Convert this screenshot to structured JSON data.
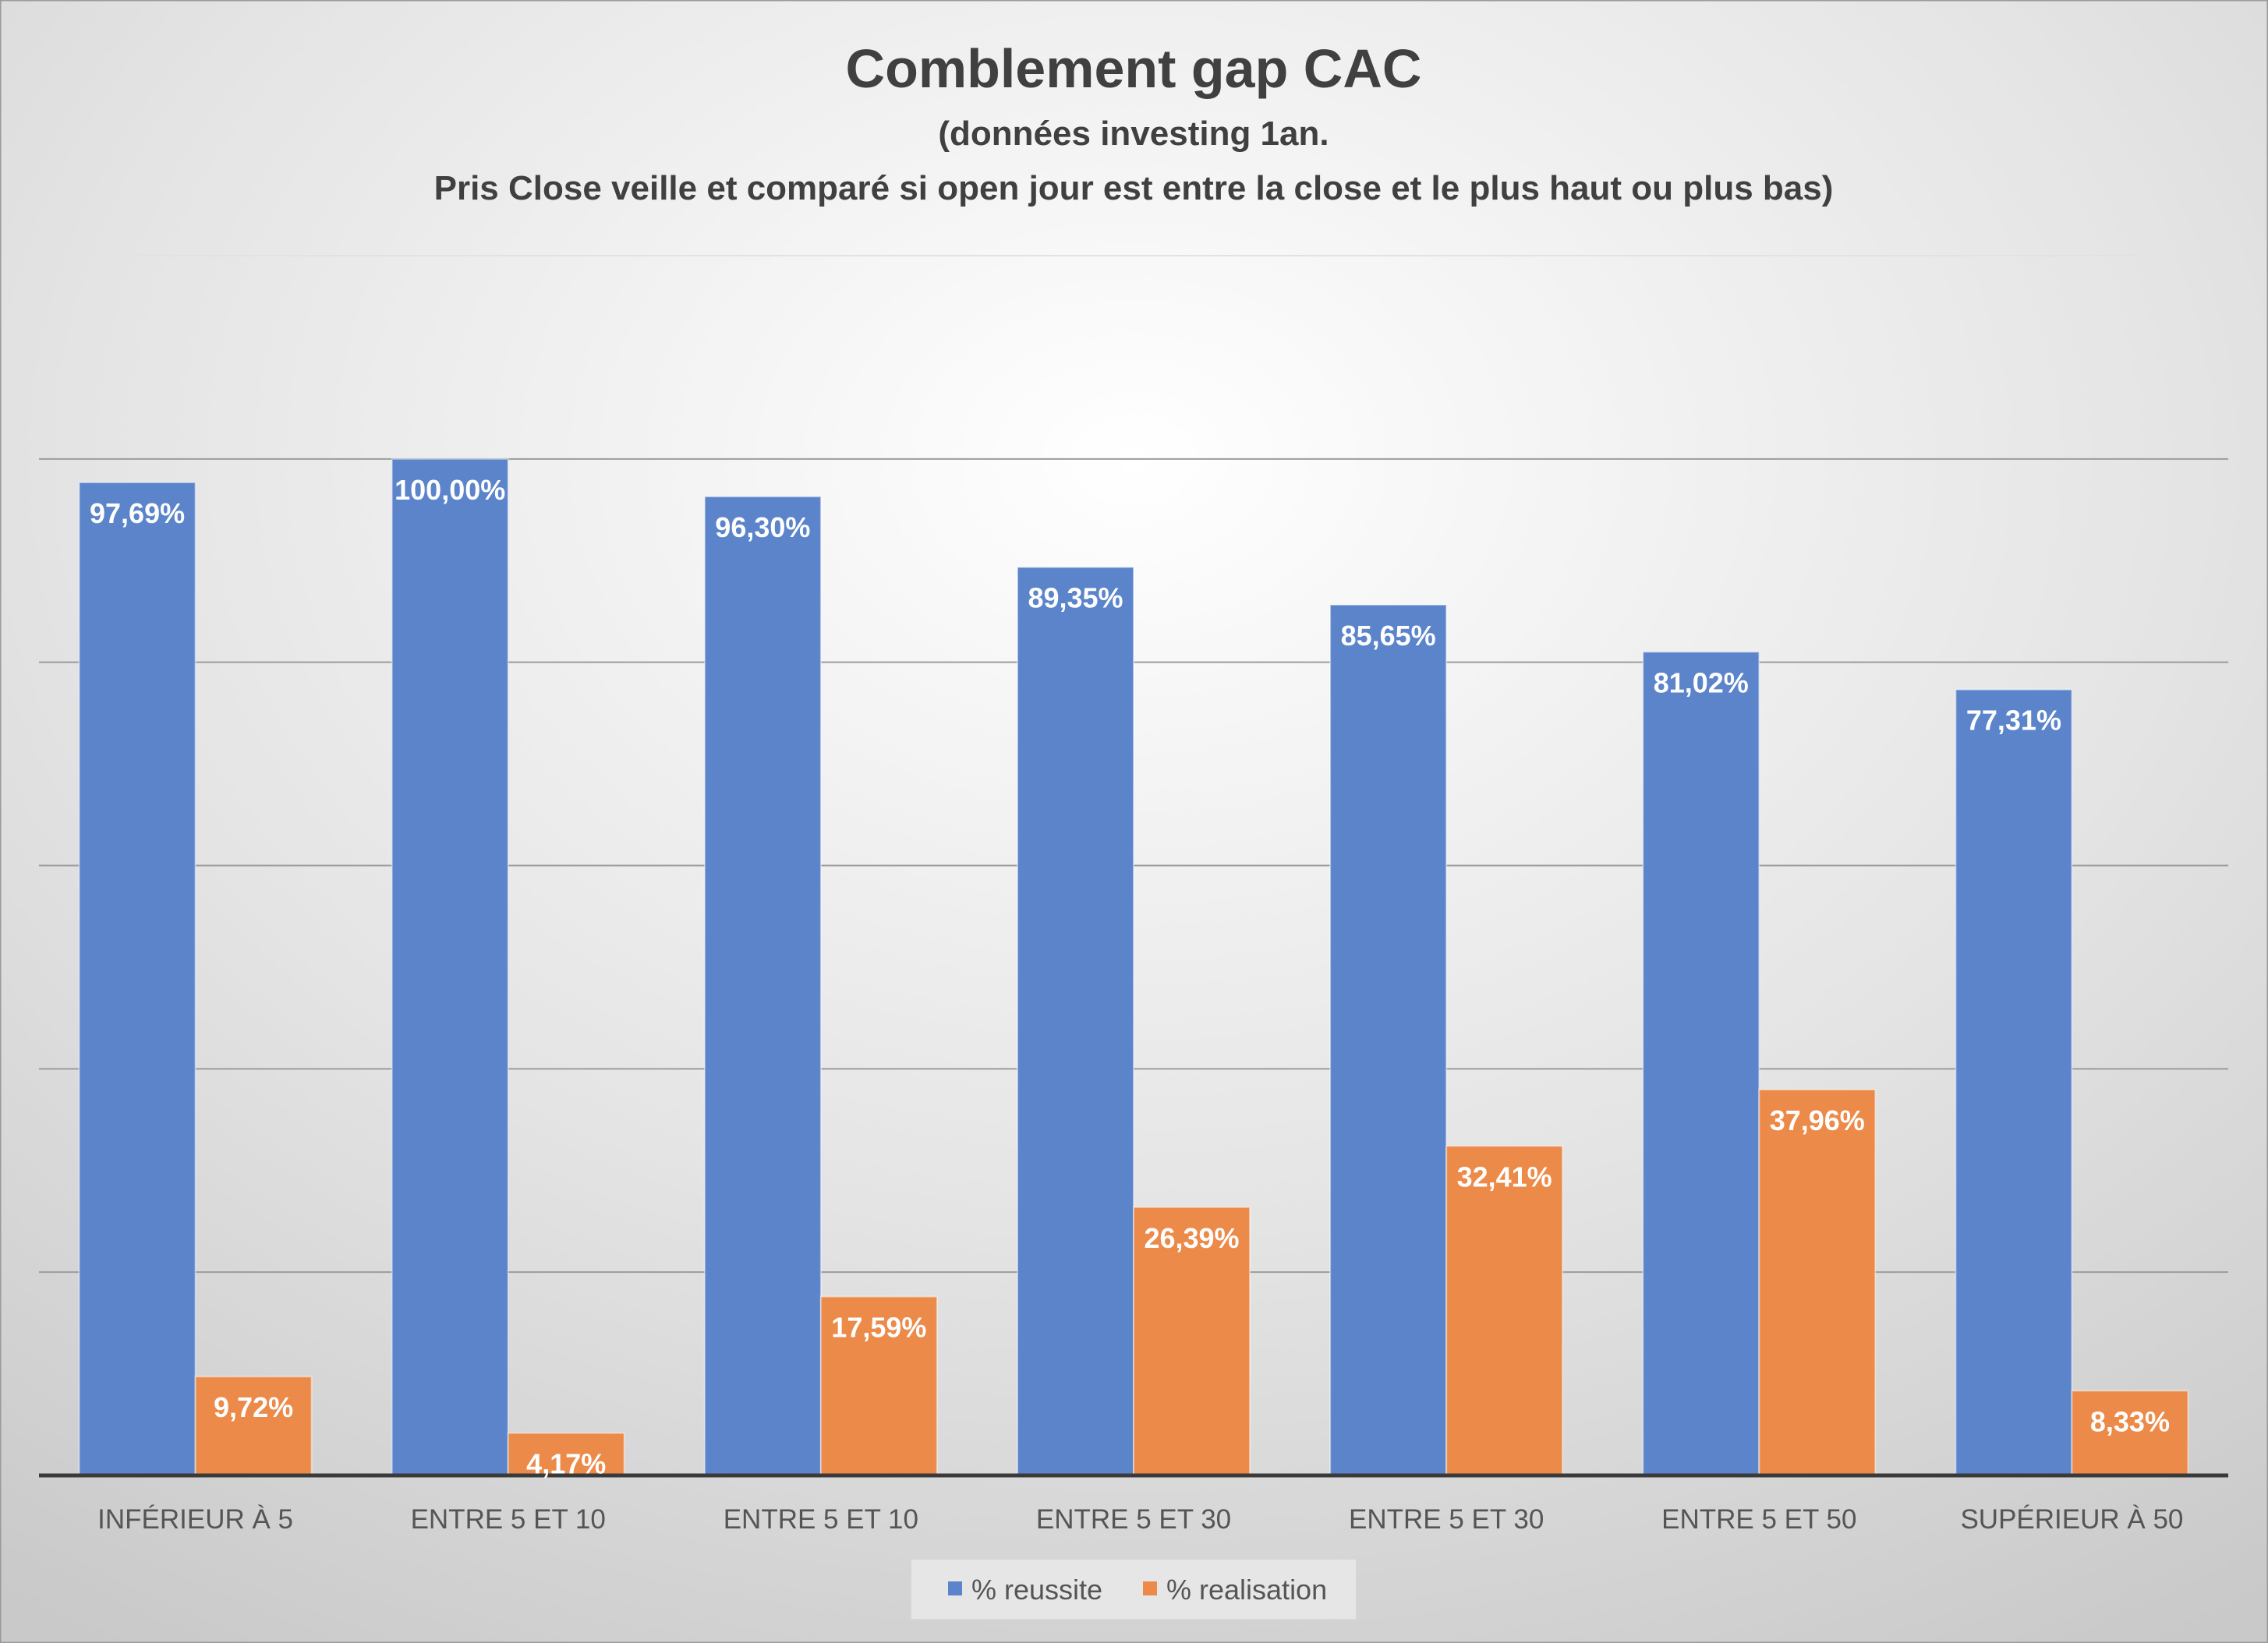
{
  "chart_data": {
    "type": "bar",
    "title": "Comblement gap CAC",
    "subtitle_lines": [
      "(données investing 1an.",
      "Pris Close veille et comparé si open jour est entre la close et le plus haut ou plus bas)"
    ],
    "categories": [
      "INFÉRIEUR À 5",
      "ENTRE 5 ET 10",
      "ENTRE 5 ET 10",
      "ENTRE 5 ET 30",
      "ENTRE 5 ET 30",
      "ENTRE 5 ET 50",
      "SUPÉRIEUR À 50"
    ],
    "series": [
      {
        "name": "% reussite",
        "color": "#5B84CB",
        "values": [
          97.69,
          100.0,
          96.3,
          89.35,
          85.65,
          81.02,
          77.31
        ],
        "labels": [
          "97,69%",
          "100,00%",
          "96,30%",
          "89,35%",
          "85,65%",
          "81,02%",
          "77,31%"
        ]
      },
      {
        "name": "% realisation",
        "color": "#EC8A4A",
        "values": [
          9.72,
          4.17,
          17.59,
          26.39,
          32.41,
          37.96,
          8.33
        ],
        "labels": [
          "9,72%",
          "4,17%",
          "17,59%",
          "26,39%",
          "32,41%",
          "37,96%",
          "8,33%"
        ]
      }
    ],
    "ylim": [
      0,
      120
    ],
    "ytick_step": 20,
    "grid": true,
    "y_axis_labels_shown": false,
    "legend_position": "bottom",
    "background": "light-gray gradient"
  }
}
